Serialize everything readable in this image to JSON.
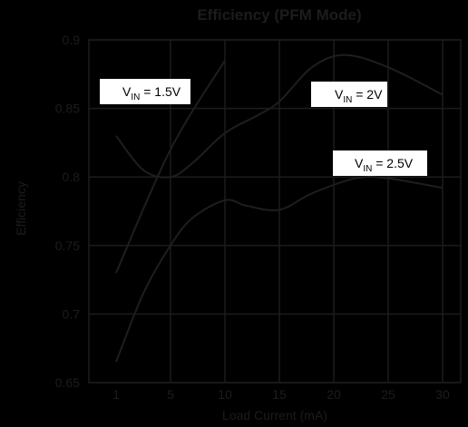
{
  "colors": {
    "background": "#000000",
    "grid": "#1c1c1c",
    "frame": "#1c1c1c",
    "line": "#1e1e1e",
    "text": "#1c1c1c",
    "label_box": "#ffffff",
    "label_text": "#000000"
  },
  "chart_data": {
    "type": "line",
    "title": "Efficiency (PFM Mode)",
    "xlabel": "Load Current (mA)",
    "ylabel": "Efficiency",
    "x_ticks": [
      "1",
      "5",
      "10",
      "15",
      "20",
      "25",
      "30"
    ],
    "x_tick_values": [
      1,
      5,
      10,
      15,
      20,
      25,
      30
    ],
    "y_ticks": [
      "0.65",
      "0.7",
      "0.75",
      "0.8",
      "0.85",
      "0.9"
    ],
    "y_tick_values": [
      0.65,
      0.7,
      0.75,
      0.8,
      0.85,
      0.9
    ],
    "ylim": [
      0.65,
      0.9
    ],
    "grid": true,
    "series": [
      {
        "name": "VIN = 1.5V",
        "label_main": "V",
        "label_sub": "IN",
        "label_tail": " = 1.5V",
        "x": [
          1,
          5,
          10
        ],
        "y": [
          0.73,
          0.82,
          0.885
        ]
      },
      {
        "name": "VIN = 2V",
        "label_main": "V",
        "label_sub": "IN",
        "label_tail": " = 2V",
        "x": [
          1,
          3,
          5,
          7,
          10,
          13,
          15,
          18,
          21,
          25,
          30
        ],
        "y": [
          0.83,
          0.805,
          0.8,
          0.81,
          0.832,
          0.845,
          0.855,
          0.88,
          0.889,
          0.88,
          0.86
        ]
      },
      {
        "name": "VIN = 2.5V",
        "label_main": "V",
        "label_sub": "IN",
        "label_tail": " = 2.5V",
        "x": [
          1,
          3,
          5,
          7,
          10,
          12,
          15,
          18,
          22,
          25,
          30
        ],
        "y": [
          0.665,
          0.715,
          0.75,
          0.77,
          0.783,
          0.779,
          0.776,
          0.788,
          0.799,
          0.799,
          0.792
        ]
      }
    ]
  }
}
